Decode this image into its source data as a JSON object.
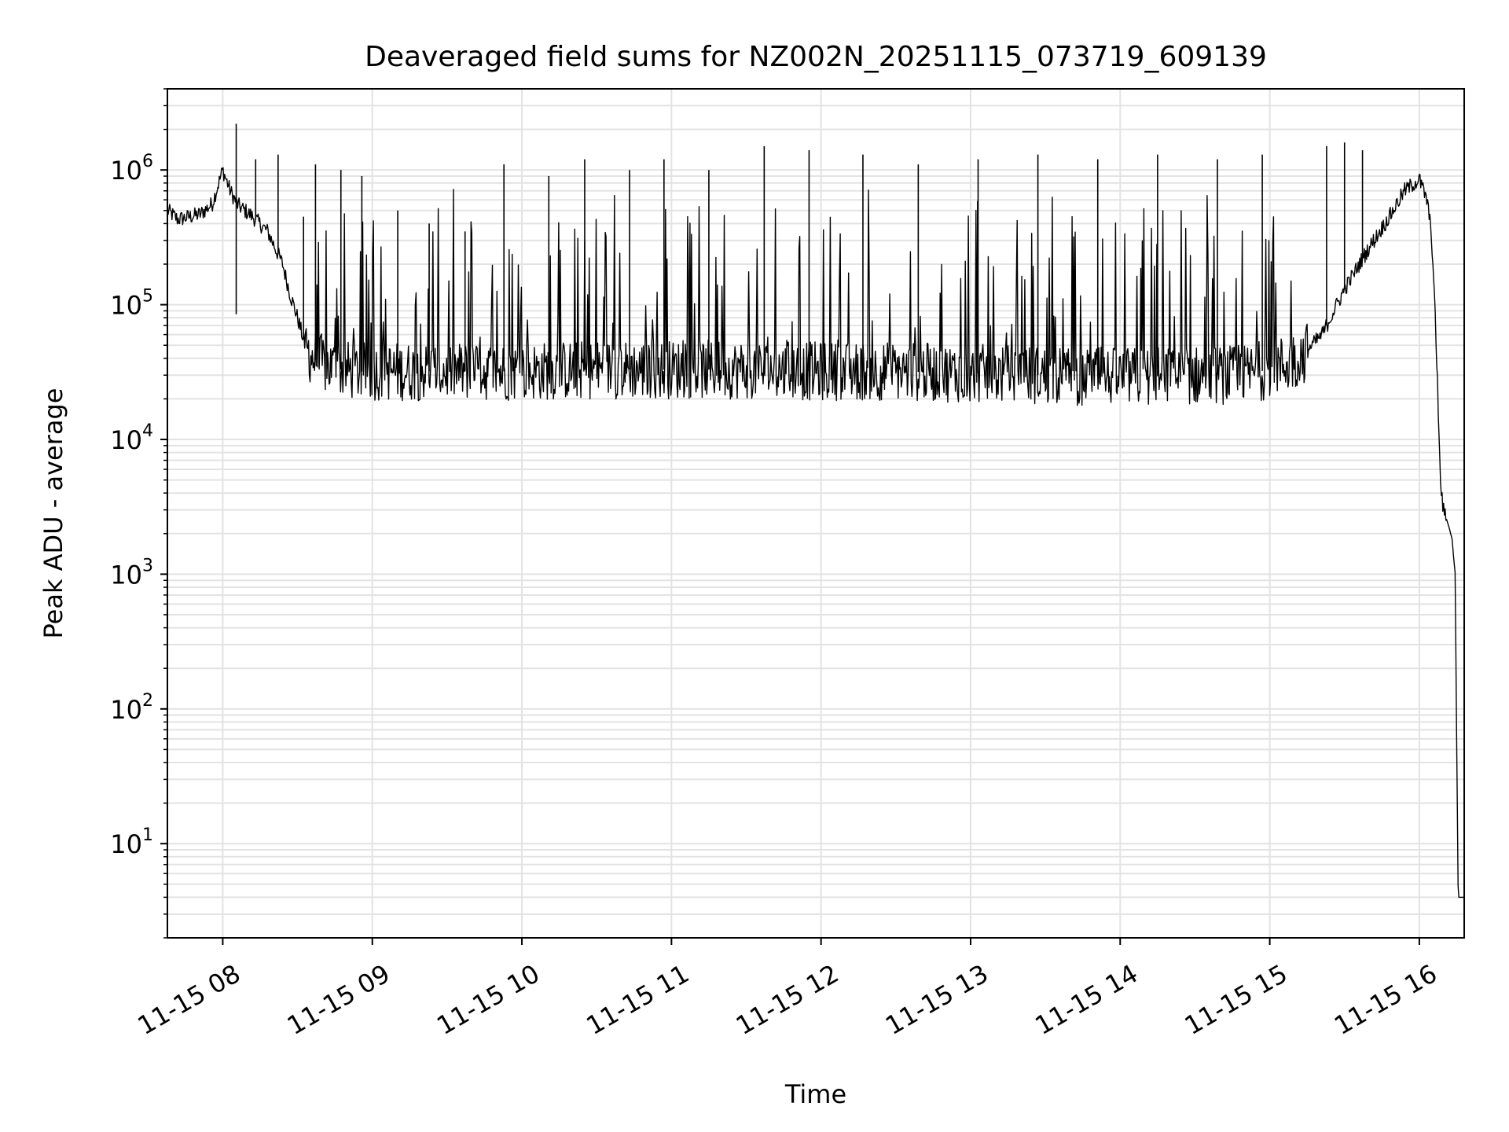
{
  "chart_data": {
    "type": "line",
    "title": "Deaveraged field sums for NZ002N_20251115_073719_609139",
    "xlabel": "Time",
    "ylabel": "Peak ADU - average",
    "yscale": "log",
    "ylim": [
      2,
      4000000
    ],
    "xlim_hours": [
      7.63,
      16.3
    ],
    "grid": true,
    "line_color": "#000000",
    "x_ticks": [
      {
        "hour": 8,
        "label": "11-15 08"
      },
      {
        "hour": 9,
        "label": "11-15 09"
      },
      {
        "hour": 10,
        "label": "11-15 10"
      },
      {
        "hour": 11,
        "label": "11-15 11"
      },
      {
        "hour": 12,
        "label": "11-15 12"
      },
      {
        "hour": 13,
        "label": "11-15 13"
      },
      {
        "hour": 14,
        "label": "11-15 14"
      },
      {
        "hour": 15,
        "label": "11-15 15"
      },
      {
        "hour": 16,
        "label": "11-15 16"
      }
    ],
    "y_ticks": [
      {
        "value": 10,
        "base": "10",
        "exp": "1"
      },
      {
        "value": 100,
        "base": "10",
        "exp": "2"
      },
      {
        "value": 1000,
        "base": "10",
        "exp": "3"
      },
      {
        "value": 10000,
        "base": "10",
        "exp": "4"
      },
      {
        "value": 100000,
        "base": "10",
        "exp": "5"
      },
      {
        "value": 1000000,
        "base": "10",
        "exp": "6"
      }
    ],
    "series": [
      {
        "name": "deaveraged_field_sum",
        "x_hours": [
          7.63,
          7.7,
          7.78,
          7.85,
          7.93,
          8.0,
          8.05,
          8.1,
          8.2,
          8.3,
          8.4,
          8.45,
          8.5,
          8.55,
          8.6,
          8.7,
          8.8,
          8.9,
          9.0,
          9.5,
          10.0,
          10.5,
          11.0,
          11.5,
          12.0,
          12.5,
          13.0,
          13.5,
          14.0,
          14.5,
          14.8,
          15.0,
          15.2,
          15.35,
          15.5,
          15.65,
          15.8,
          15.9,
          16.0,
          16.05,
          16.08,
          16.1,
          16.12,
          16.14,
          16.16,
          16.18,
          16.2,
          16.22,
          16.23,
          16.24,
          16.25,
          16.26,
          16.28,
          16.3
        ],
        "y_values": [
          500000,
          430000,
          450000,
          470000,
          560000,
          1000000,
          700000,
          550000,
          450000,
          350000,
          200000,
          120000,
          80000,
          50000,
          40000,
          35000,
          33000,
          32000,
          32000,
          32000,
          32000,
          33000,
          33000,
          33000,
          32000,
          32000,
          31000,
          30000,
          29000,
          30000,
          30000,
          33000,
          40000,
          60000,
          130000,
          250000,
          450000,
          700000,
          850000,
          600000,
          350000,
          120000,
          30000,
          5000,
          3000,
          2600,
          2200,
          1800,
          1300,
          1000,
          50,
          4,
          4,
          4
        ]
      }
    ],
    "spikes": [
      {
        "hour": 8.09,
        "value": 2200000
      },
      {
        "hour": 8.09,
        "value": 85000,
        "direction": "down"
      },
      {
        "hour": 8.22,
        "value": 1200000
      },
      {
        "hour": 8.37,
        "value": 1300000
      },
      {
        "hour": 8.54,
        "value": 450000
      },
      {
        "hour": 8.62,
        "value": 1100000
      },
      {
        "hour": 8.79,
        "value": 1000000
      },
      {
        "hour": 8.93,
        "value": 900000
      },
      {
        "hour": 9.17,
        "value": 500000
      },
      {
        "hour": 9.38,
        "value": 400000
      },
      {
        "hour": 9.62,
        "value": 350000
      },
      {
        "hour": 9.88,
        "value": 1100000
      },
      {
        "hour": 10.18,
        "value": 900000
      },
      {
        "hour": 10.42,
        "value": 1200000
      },
      {
        "hour": 10.72,
        "value": 1000000
      },
      {
        "hour": 10.95,
        "value": 1200000
      },
      {
        "hour": 11.25,
        "value": 1000000
      },
      {
        "hour": 11.62,
        "value": 1500000
      },
      {
        "hour": 11.92,
        "value": 1400000
      },
      {
        "hour": 12.28,
        "value": 1300000
      },
      {
        "hour": 12.65,
        "value": 1100000
      },
      {
        "hour": 13.05,
        "value": 1200000
      },
      {
        "hour": 13.45,
        "value": 1300000
      },
      {
        "hour": 13.85,
        "value": 1200000
      },
      {
        "hour": 14.25,
        "value": 1300000
      },
      {
        "hour": 14.65,
        "value": 1200000
      },
      {
        "hour": 14.95,
        "value": 1300000
      },
      {
        "hour": 15.38,
        "value": 1500000
      },
      {
        "hour": 15.5,
        "value": 1600000
      },
      {
        "hour": 15.62,
        "value": 1400000
      }
    ]
  }
}
